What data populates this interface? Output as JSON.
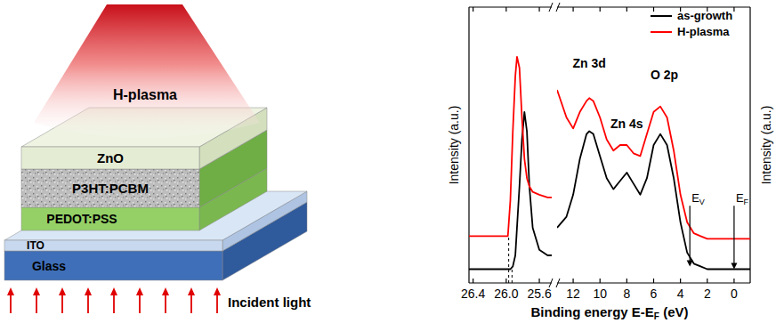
{
  "diagram": {
    "plasma_label": "H-plasma",
    "layers": [
      {
        "label": "ZnO"
      },
      {
        "label": "P3HT:PCBM"
      },
      {
        "label": "PEDOT:PSS"
      },
      {
        "label": "ITO"
      },
      {
        "label": "Glass"
      }
    ],
    "light_label": "Incident light"
  },
  "chart_data": [
    {
      "type": "line",
      "xlim": [
        26.45,
        25.45
      ],
      "xticks": [
        26.4,
        {
          "value": 26,
          "label": "26.0"
        },
        25.6
      ],
      "ylim": [
        0,
        100
      ],
      "tick_labels": "x",
      "y_label": "Intensity (a.u.)",
      "series": [
        {
          "color": "#000000",
          "x": [
            26.45,
            26.1,
            26.0,
            25.98,
            25.95,
            25.92,
            25.89,
            25.87,
            25.84,
            25.81,
            25.78,
            25.75,
            25.72,
            25.68,
            25.6,
            25.5,
            25.45
          ],
          "values": [
            5,
            5,
            5,
            5,
            5,
            6,
            10,
            20,
            35,
            52,
            62,
            55,
            35,
            20,
            12,
            10,
            10
          ]
        },
        {
          "color": "#ff0000",
          "x": [
            26.45,
            26.1,
            26.0,
            25.98,
            25.95,
            25.92,
            25.89,
            25.87,
            25.84,
            25.81,
            25.78,
            25.75,
            25.72,
            25.68,
            25.6,
            25.5,
            25.45
          ],
          "values": [
            17,
            17,
            17,
            17,
            30,
            55,
            75,
            82,
            78,
            60,
            45,
            38,
            35,
            33,
            32,
            31,
            31
          ]
        }
      ],
      "vlines": [
        {
          "x": 25.97,
          "y": 17
        },
        {
          "x": 25.93,
          "y": 5
        }
      ]
    },
    {
      "type": "line",
      "xlim": [
        13.2,
        -1.2
      ],
      "xticks": [
        12,
        10,
        8,
        6,
        4,
        2,
        0
      ],
      "ylim": [
        0,
        100
      ],
      "tick_labels": "x",
      "y_label": "Intensity (a.u.)",
      "x_label": {
        "text": "Binding energy E-E",
        "sub": "F",
        "tail": " (eV)"
      },
      "legend": "upper right",
      "series": [
        {
          "name": "as-growth",
          "color": "#000000",
          "x": [
            13.2,
            12.5,
            12,
            11.5,
            11,
            10.8,
            10.5,
            10,
            9.5,
            9,
            8.5,
            8,
            7.5,
            7,
            6.5,
            6,
            5.5,
            5,
            4.5,
            4,
            3.5,
            3,
            2.5,
            2,
            1,
            0,
            -1.2
          ],
          "values": [
            20,
            24,
            32,
            45,
            54,
            55,
            54,
            46,
            38,
            34,
            37,
            40,
            36,
            32,
            38,
            50,
            54,
            50,
            38,
            22,
            11,
            7,
            6,
            5,
            5,
            5,
            5
          ]
        },
        {
          "name": "H-plasma",
          "color": "#ff0000",
          "x": [
            13.2,
            12.5,
            12,
            11.5,
            11,
            10.8,
            10.5,
            10,
            9.5,
            9,
            8.5,
            8,
            7.5,
            7,
            6.5,
            6,
            5.5,
            5,
            4.5,
            4,
            3.5,
            3,
            2.5,
            2,
            1,
            0,
            -1.2
          ],
          "values": [
            70,
            60,
            56,
            62,
            66,
            67,
            66,
            60,
            52,
            48,
            50,
            50,
            47,
            46,
            54,
            62,
            64,
            60,
            48,
            32,
            22,
            18,
            17,
            16,
            16,
            16,
            16
          ]
        }
      ],
      "annotations": [
        {
          "text": "Zn 3d",
          "x": 10.8,
          "y": 78
        },
        {
          "text": "Zn 4s",
          "x": 8,
          "y": 56
        },
        {
          "text": "O 2p",
          "x": 5.2,
          "y": 74
        }
      ],
      "arrows": [
        {
          "text": "E",
          "sub": "V",
          "x": 3.3,
          "y_from": 28,
          "y_to": 6
        },
        {
          "text": "E",
          "sub": "F",
          "x": 0,
          "y_from": 28,
          "y_to": 5
        }
      ]
    }
  ]
}
